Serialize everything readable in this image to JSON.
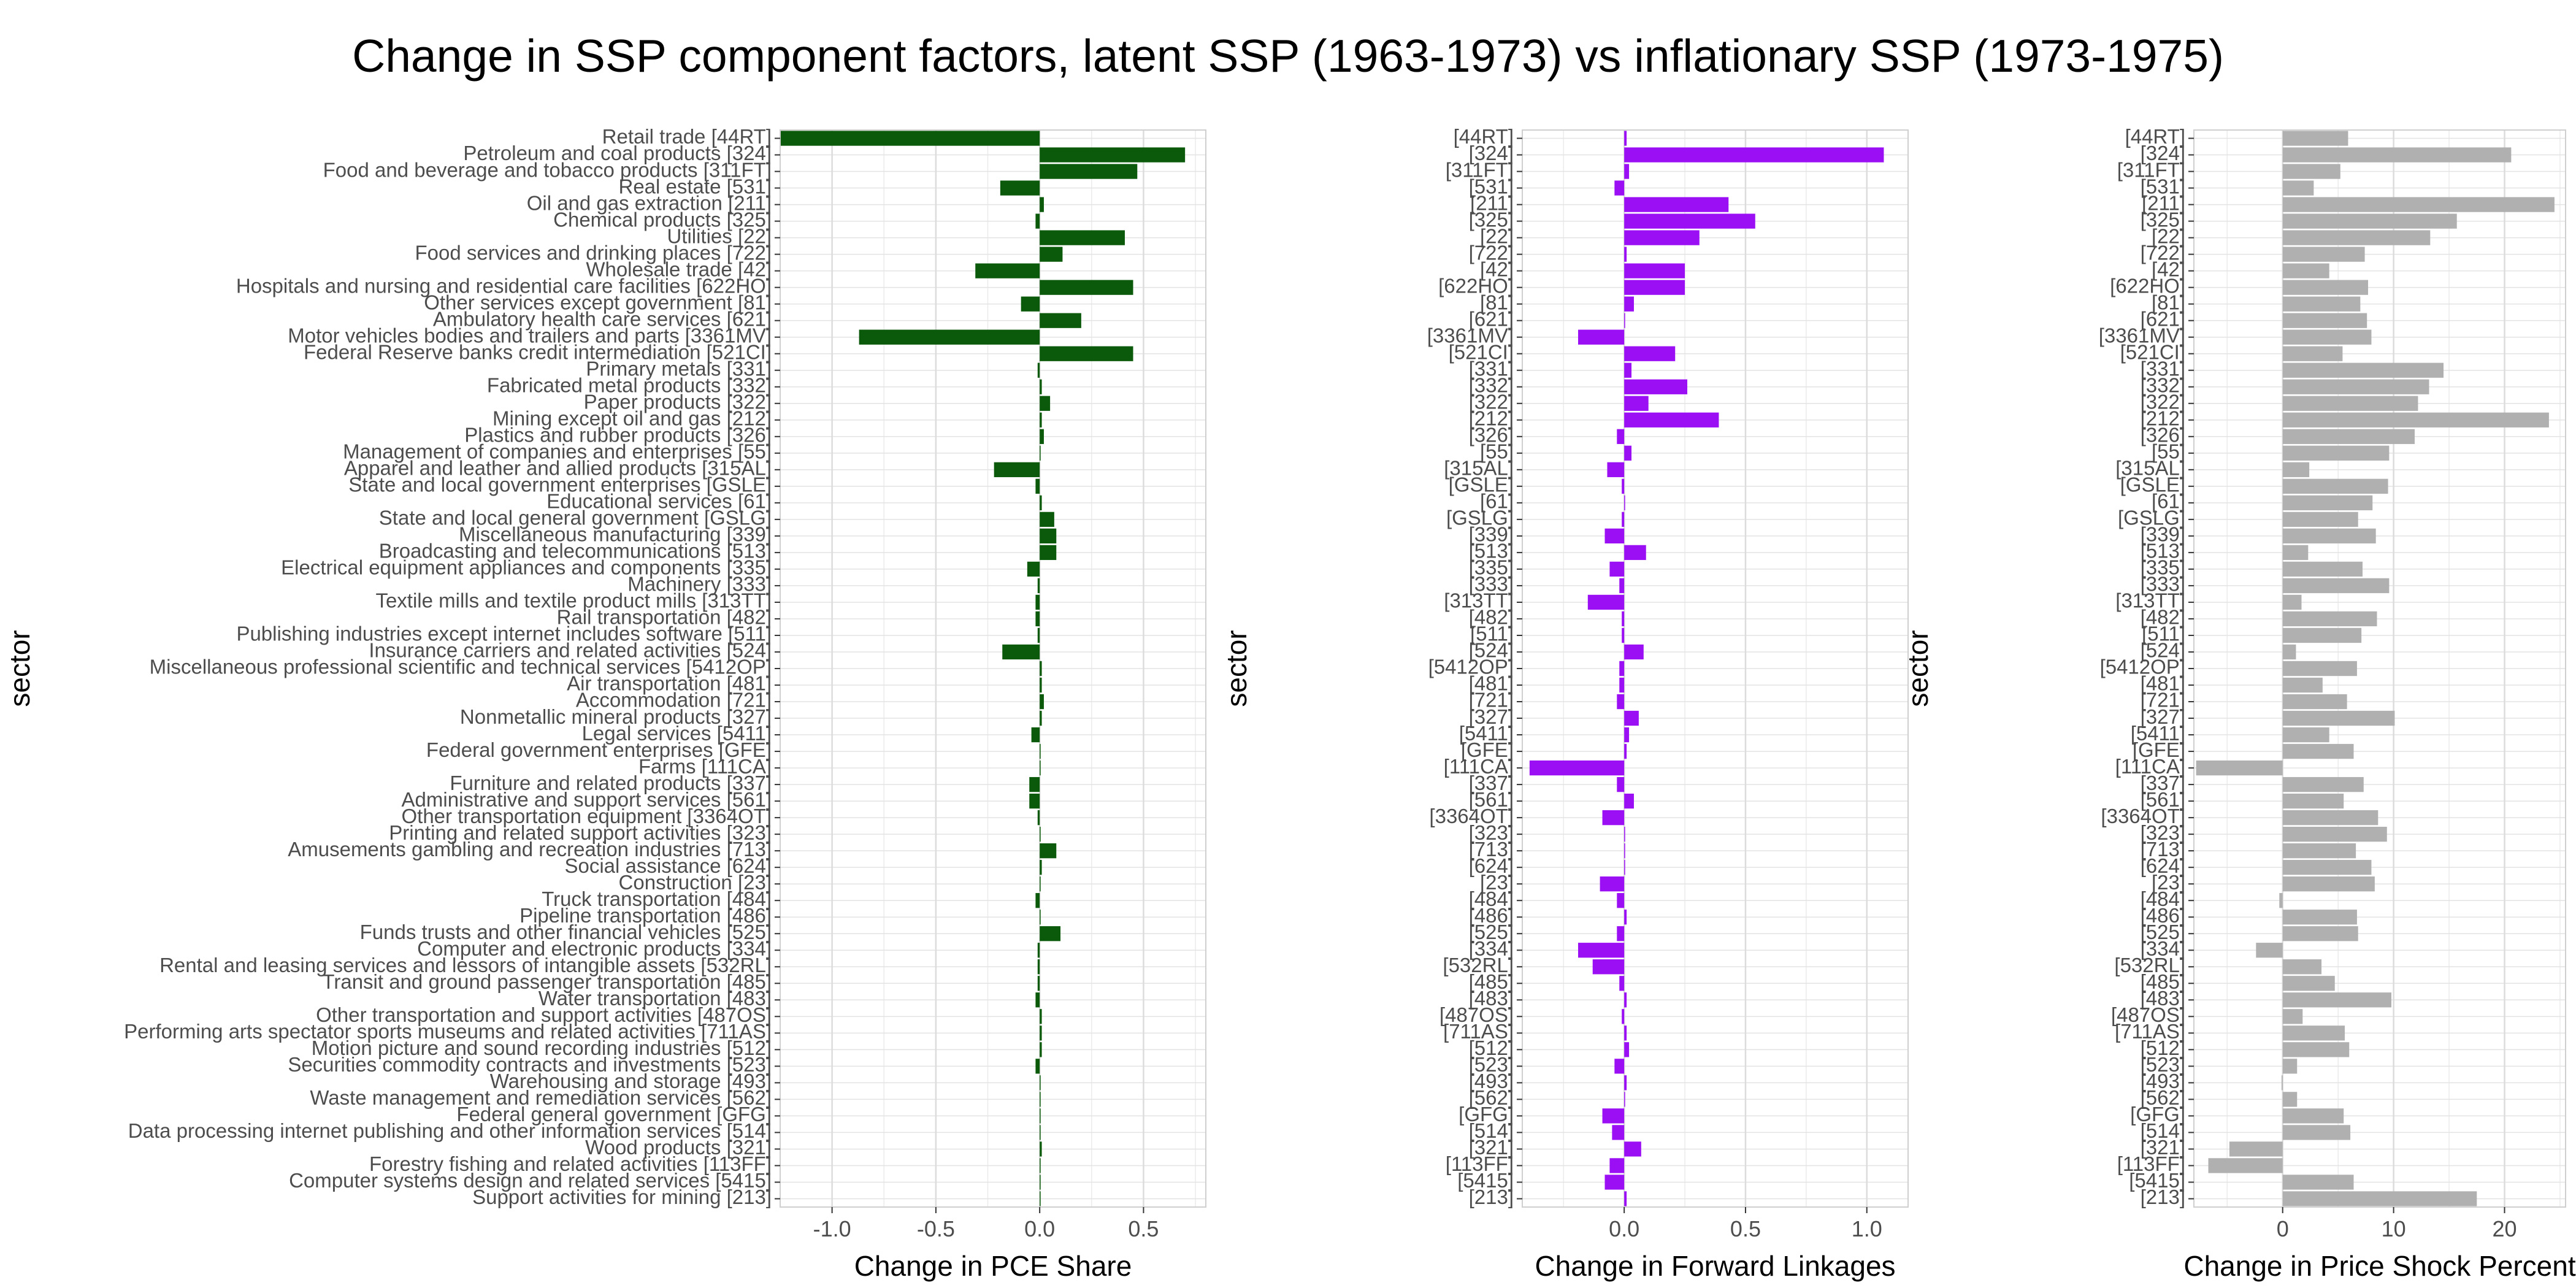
{
  "chart_data": [
    {
      "type": "bar",
      "orientation": "horizontal",
      "title": "Change in SSP component factors, latent SSP (1963-1973) vs inflationary SSP (1973-1975)",
      "xlabel": "Change in PCE Share",
      "ylabel": "sector",
      "xlim": [
        -1.25,
        0.8
      ],
      "xticks": [
        -1.0,
        -0.5,
        0.0,
        0.5
      ],
      "xtick_labels": [
        "-1.0",
        "-0.5",
        "0.0",
        "0.5"
      ],
      "color": "#0b5a0b",
      "grid": true,
      "categories": [
        "Retail trade [44RT]",
        "Petroleum and coal products [324]",
        "Food and beverage and tobacco products [311FT]",
        "Real estate [531]",
        "Oil and gas extraction [211]",
        "Chemical products [325]",
        "Utilities [22]",
        "Food services and drinking places [722]",
        "Wholesale trade [42]",
        "Hospitals and nursing and residential care facilities [622HO]",
        "Other services except government [81]",
        "Ambulatory health care services [621]",
        "Motor vehicles bodies and trailers and parts [3361MV]",
        "Federal Reserve banks credit intermediation [521CI]",
        "Primary metals [331]",
        "Fabricated metal products [332]",
        "Paper products [322]",
        "Mining except oil and gas [212]",
        "Plastics and rubber products [326]",
        "Management of companies and enterprises [55]",
        "Apparel and leather and allied products [315AL]",
        "State and local government enterprises [GSLE]",
        "Educational services [61]",
        "State and local general government [GSLG]",
        "Miscellaneous manufacturing [339]",
        "Broadcasting and telecommunications [513]",
        "Electrical equipment appliances and components [335]",
        "Machinery [333]",
        "Textile mills and textile product mills [313TT]",
        "Rail transportation [482]",
        "Publishing industries except internet includes software [511]",
        "Insurance carriers and related activities [524]",
        "Miscellaneous professional scientific and technical services [5412OP]",
        "Air transportation [481]",
        "Accommodation [721]",
        "Nonmetallic mineral products [327]",
        "Legal services [5411]",
        "Federal government enterprises [GFE]",
        "Farms [111CA]",
        "Furniture and related products [337]",
        "Administrative and support services [561]",
        "Other transportation equipment [3364OT]",
        "Printing and related support activities [323]",
        "Amusements gambling and recreation industries [713]",
        "Social assistance [624]",
        "Construction [23]",
        "Truck transportation [484]",
        "Pipeline transportation [486]",
        "Funds trusts and other financial vehicles [525]",
        "Computer and electronic products [334]",
        "Rental and leasing services and lessors of intangible assets [532RL]",
        "Transit and ground passenger transportation [485]",
        "Water transportation [483]",
        "Other transportation and support activities [487OS]",
        "Performing arts spectator sports museums and related activities [711AS]",
        "Motion picture and sound recording industries [512]",
        "Securities commodity contracts and investments [523]",
        "Warehousing and storage [493]",
        "Waste management and remediation services [562]",
        "Federal general government [GFG]",
        "Data processing internet publishing and other information services [514]",
        "Wood products [321]",
        "Forestry fishing and related activities [113FF]",
        "Computer systems design and related services [5415]",
        "Support activities for mining [213]"
      ],
      "values": [
        -1.25,
        0.7,
        0.47,
        -0.19,
        0.02,
        -0.02,
        0.41,
        0.11,
        -0.31,
        0.45,
        -0.09,
        0.2,
        -0.87,
        0.45,
        -0.01,
        0.01,
        0.05,
        0.01,
        0.02,
        0.0,
        -0.22,
        -0.02,
        0.01,
        0.07,
        0.08,
        0.08,
        -0.06,
        -0.01,
        -0.02,
        -0.02,
        -0.01,
        -0.18,
        0.01,
        0.01,
        0.02,
        0.01,
        -0.04,
        0.0,
        0.0,
        -0.05,
        -0.05,
        -0.01,
        0.0,
        0.08,
        0.01,
        0.0,
        -0.02,
        0.0,
        0.1,
        -0.01,
        -0.01,
        -0.01,
        -0.02,
        0.01,
        0.01,
        0.01,
        -0.02,
        0.0,
        0.0,
        0.0,
        0.0,
        0.01,
        0.0,
        0.0,
        0.0
      ]
    },
    {
      "type": "bar",
      "orientation": "horizontal",
      "xlabel": "Change in Forward Linkages",
      "ylabel": "sector",
      "xlim": [
        -0.42,
        1.17
      ],
      "xticks": [
        0.0,
        0.5,
        1.0
      ],
      "xtick_labels": [
        "0.0",
        "0.5",
        "1.0"
      ],
      "color": "#9b0ff5",
      "grid": true,
      "categories": [
        "[44RT]",
        "[324]",
        "[311FT]",
        "[531]",
        "[211]",
        "[325]",
        "[22]",
        "[722]",
        "[42]",
        "[622HO]",
        "[81]",
        "[621]",
        "[3361MV]",
        "[521CI]",
        "[331]",
        "[332]",
        "[322]",
        "[212]",
        "[326]",
        "[55]",
        "[315AL]",
        "[GSLE]",
        "[61]",
        "[GSLG]",
        "[339]",
        "[513]",
        "[335]",
        "[333]",
        "[313TT]",
        "[482]",
        "[511]",
        "[524]",
        "[5412OP]",
        "[481]",
        "[721]",
        "[327]",
        "[5411]",
        "[GFE]",
        "[111CA]",
        "[337]",
        "[561]",
        "[3364OT]",
        "[323]",
        "[713]",
        "[624]",
        "[23]",
        "[484]",
        "[486]",
        "[525]",
        "[334]",
        "[532RL]",
        "[485]",
        "[483]",
        "[487OS]",
        "[711AS]",
        "[512]",
        "[523]",
        "[493]",
        "[562]",
        "[GFG]",
        "[514]",
        "[321]",
        "[113FF]",
        "[5415]",
        "[213]"
      ],
      "values": [
        0.01,
        1.07,
        0.02,
        -0.04,
        0.43,
        0.54,
        0.31,
        0.01,
        0.25,
        0.25,
        0.04,
        0.0,
        -0.19,
        0.21,
        0.03,
        0.26,
        0.1,
        0.39,
        -0.03,
        0.03,
        -0.07,
        -0.01,
        0.0,
        -0.01,
        -0.08,
        0.09,
        -0.06,
        -0.02,
        -0.15,
        -0.01,
        -0.01,
        0.08,
        -0.02,
        -0.02,
        -0.03,
        0.06,
        0.02,
        0.01,
        -0.39,
        -0.03,
        0.04,
        -0.09,
        0.0,
        0.0,
        0.0,
        -0.1,
        -0.03,
        0.01,
        -0.03,
        -0.19,
        -0.13,
        -0.02,
        0.01,
        -0.01,
        0.01,
        0.02,
        -0.04,
        0.01,
        0.0,
        -0.09,
        -0.05,
        0.07,
        -0.06,
        -0.08,
        0.01
      ]
    },
    {
      "type": "bar",
      "orientation": "horizontal",
      "xlabel": "Change in Price Shock Percent",
      "ylabel": "sector",
      "xlim": [
        -8.0,
        25.5
      ],
      "xticks": [
        0,
        10,
        20
      ],
      "xtick_labels": [
        "0",
        "10",
        "20"
      ],
      "color": "#b0b0b0",
      "grid": true,
      "categories": [
        "[44RT]",
        "[324]",
        "[311FT]",
        "[531]",
        "[211]",
        "[325]",
        "[22]",
        "[722]",
        "[42]",
        "[622HO]",
        "[81]",
        "[621]",
        "[3361MV]",
        "[521CI]",
        "[331]",
        "[332]",
        "[322]",
        "[212]",
        "[326]",
        "[55]",
        "[315AL]",
        "[GSLE]",
        "[61]",
        "[GSLG]",
        "[339]",
        "[513]",
        "[335]",
        "[333]",
        "[313TT]",
        "[482]",
        "[511]",
        "[524]",
        "[5412OP]",
        "[481]",
        "[721]",
        "[327]",
        "[5411]",
        "[GFE]",
        "[111CA]",
        "[337]",
        "[561]",
        "[3364OT]",
        "[323]",
        "[713]",
        "[624]",
        "[23]",
        "[484]",
        "[486]",
        "[525]",
        "[334]",
        "[532RL]",
        "[485]",
        "[483]",
        "[487OS]",
        "[711AS]",
        "[512]",
        "[523]",
        "[493]",
        "[562]",
        "[GFG]",
        "[514]",
        "[321]",
        "[113FF]",
        "[5415]",
        "[213]"
      ],
      "values": [
        5.9,
        20.6,
        5.2,
        2.8,
        24.5,
        15.7,
        13.3,
        7.4,
        4.2,
        7.7,
        7.0,
        7.6,
        8.0,
        5.4,
        14.5,
        13.2,
        12.2,
        24.0,
        11.9,
        9.6,
        2.4,
        9.5,
        8.1,
        6.8,
        8.4,
        2.3,
        7.2,
        9.6,
        1.7,
        8.5,
        7.1,
        1.2,
        6.7,
        3.6,
        5.8,
        10.1,
        4.2,
        6.4,
        -7.8,
        7.3,
        5.5,
        8.6,
        9.4,
        6.6,
        8.0,
        8.3,
        -0.3,
        6.7,
        6.8,
        -2.4,
        3.5,
        4.7,
        9.8,
        1.8,
        5.6,
        6.0,
        1.3,
        -0.1,
        1.3,
        5.5,
        6.1,
        -4.8,
        -6.7,
        6.4,
        17.5
      ]
    }
  ]
}
